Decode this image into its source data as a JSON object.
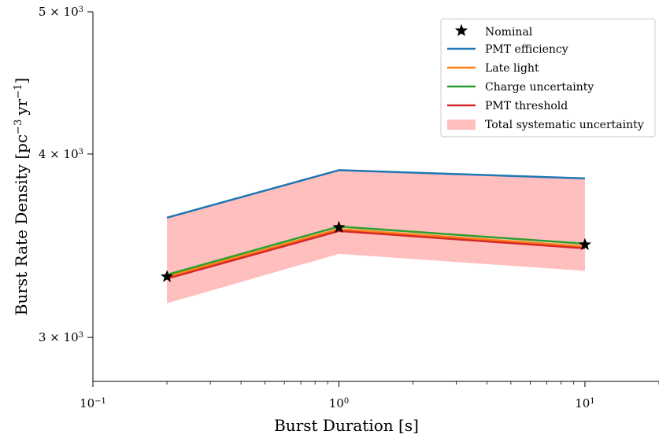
{
  "chart_data": {
    "type": "line",
    "xlabel": "Burst Duration [s]",
    "ylabel": "Burst Rate Density [pc",
    "ylabel_unit_mid": "yr",
    "ylabel_sup1": "−3",
    "ylabel_sup2": "−1",
    "ylabel_end": "]",
    "x_scale": "log",
    "y_scale": "log",
    "xlim": [
      0.1,
      20
    ],
    "ylim": [
      2800,
      5000
    ],
    "x": [
      0.2,
      1,
      10
    ],
    "x_ticks": [
      {
        "value": 0.1,
        "base": "10",
        "exp": "−1"
      },
      {
        "value": 1,
        "base": "10",
        "exp": "0"
      },
      {
        "value": 10,
        "base": "10",
        "exp": "1"
      }
    ],
    "y_ticks": [
      {
        "value": 3000,
        "prefix": "3 × 10",
        "exp": "3"
      },
      {
        "value": 4000,
        "prefix": "4 × 10",
        "exp": "3"
      },
      {
        "value": 5000,
        "prefix": "5 × 10",
        "exp": "3"
      }
    ],
    "series": [
      {
        "name": "PMT efficiency",
        "color": "#1f77b4",
        "values": [
          3620,
          3900,
          3850
        ]
      },
      {
        "name": "Late light",
        "color": "#ff7f0e",
        "values": [
          3300,
          3555,
          3460
        ]
      },
      {
        "name": "Charge uncertainty",
        "color": "#2ca02c",
        "values": [
          3310,
          3570,
          3475
        ]
      },
      {
        "name": "PMT threshold",
        "color": "#d62728",
        "values": [
          3290,
          3545,
          3450
        ]
      }
    ],
    "nominal": {
      "name": "Nominal",
      "color": "#000000",
      "values": [
        3300,
        3565,
        3470
      ]
    },
    "band": {
      "name": "Total systematic uncertainty",
      "color": "#ffbfbf",
      "upper": [
        3625,
        3905,
        3855
      ],
      "lower": [
        3165,
        3420,
        3330
      ]
    },
    "legend_position": "top-right",
    "grid": false
  }
}
